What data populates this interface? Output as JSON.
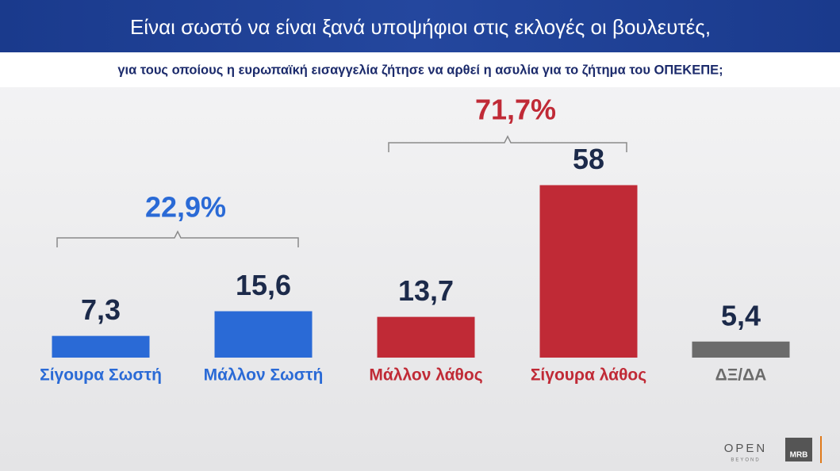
{
  "chart_data": {
    "type": "bar",
    "title": "Είναι σωστό να είναι ξανά υποψήφιοι στις εκλογές οι βουλευτές,",
    "subtitle": "για τους οποίους η ευρωπαϊκή εισαγγελία ζήτησε να αρθεί η ασυλία για το ζήτημα του ΟΠΕΚΕΠΕ;",
    "categories": [
      "Σίγουρα Σωστή",
      "Μάλλον Σωστή",
      "Μάλλον λάθος",
      "Σίγουρα λάθος",
      "ΔΞ/ΔΑ"
    ],
    "values": [
      7.3,
      15.6,
      13.7,
      58,
      5.4
    ],
    "value_labels": [
      "7,3",
      "15,6",
      "13,7",
      "58",
      "5,4"
    ],
    "colors": [
      "#2a6ad6",
      "#2a6ad6",
      "#c02a36",
      "#c02a36",
      "#6b6b6b"
    ],
    "annotations": [
      {
        "text": "22,9%",
        "color": "#2a6ad6"
      },
      {
        "text": "71,7%",
        "color": "#c02a36"
      }
    ],
    "logos": [
      "OPEN",
      "BEYOND",
      "MRB"
    ]
  }
}
